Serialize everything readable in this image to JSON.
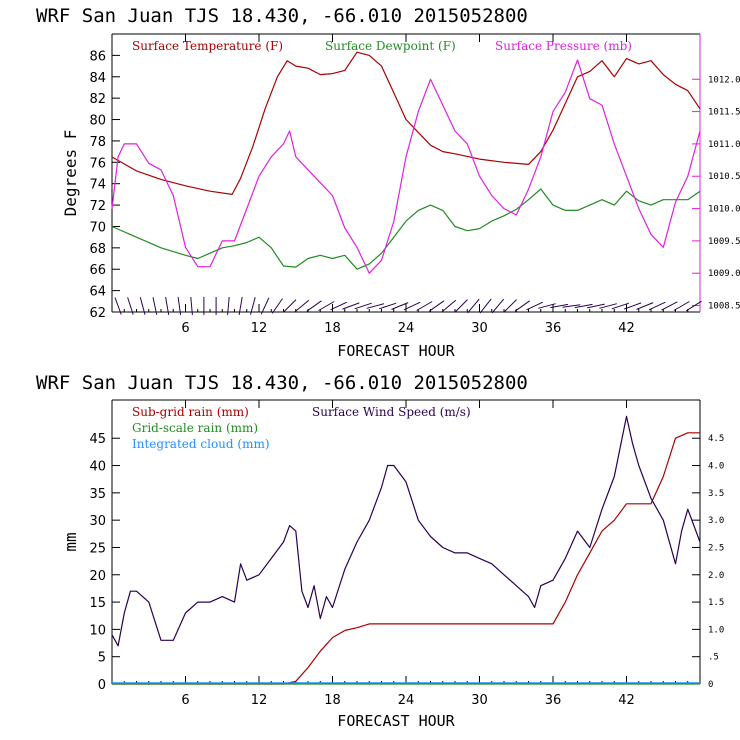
{
  "chart_data": [
    {
      "type": "line",
      "title": "WRF   San Juan TJS  18.430, -66.010  2015052800",
      "xlabel": "FORECAST HOUR",
      "ylabel": "Degrees F",
      "xlim": [
        0,
        48
      ],
      "ylim": [
        62,
        88
      ],
      "y2lim": [
        1008.4,
        1012.7
      ],
      "x_ticks": [
        6,
        12,
        18,
        24,
        30,
        36,
        42
      ],
      "y_ticks": [
        62,
        64,
        66,
        68,
        70,
        72,
        74,
        76,
        78,
        80,
        82,
        84,
        86
      ],
      "y2_ticks": [
        {
          "value": 1008.5,
          "label": "1008.5"
        },
        {
          "value": 1009.0,
          "label": "1009.0"
        },
        {
          "value": 1009.5,
          "label": "1009.5"
        },
        {
          "value": 1010.0,
          "label": "1010.0"
        },
        {
          "value": 1010.5,
          "label": "1010.5"
        },
        {
          "value": 1011.0,
          "label": "1011.0"
        },
        {
          "value": 1011.5,
          "label": "1011.5"
        },
        {
          "value": 1012.0,
          "label": "1012.0"
        }
      ],
      "legend_placement": "top-left",
      "series": [
        {
          "name": "Surface Temperature (F)",
          "color": "#aa0000",
          "axis": "left",
          "x": [
            0,
            2,
            4,
            6,
            8,
            9.8,
            10.5,
            11.5,
            12.5,
            13.5,
            14.3,
            15,
            16,
            17,
            18,
            19,
            20,
            21,
            22,
            23,
            24,
            25,
            26,
            27,
            28,
            30,
            32,
            34,
            35,
            36,
            37,
            38,
            39,
            40,
            41,
            42,
            43,
            44,
            45,
            46,
            47,
            48
          ],
          "y": [
            76.5,
            75.2,
            74.4,
            73.8,
            73.3,
            73.0,
            74.5,
            77.5,
            81.0,
            84.0,
            85.5,
            85.0,
            84.8,
            84.2,
            84.3,
            84.6,
            86.3,
            86.0,
            85.0,
            82.5,
            80.0,
            78.8,
            77.6,
            77.0,
            76.8,
            76.3,
            76.0,
            75.8,
            77.0,
            79.0,
            81.5,
            84.0,
            84.5,
            85.5,
            84.0,
            85.7,
            85.2,
            85.5,
            84.2,
            83.3,
            82.7,
            81.0
          ]
        },
        {
          "name": "Surface Dewpoint (F)",
          "color": "#228b22",
          "axis": "left",
          "x": [
            0,
            2,
            4,
            6,
            7,
            8,
            9,
            10,
            11,
            12,
            13,
            14,
            15,
            16,
            17,
            18,
            19,
            20,
            21,
            22,
            23,
            24,
            25,
            26,
            27,
            28,
            29,
            30,
            31,
            32,
            33,
            34,
            35,
            36,
            37,
            38,
            39,
            40,
            41,
            42,
            43,
            44,
            45,
            46,
            47,
            48
          ],
          "y": [
            70.0,
            69.0,
            68.0,
            67.3,
            67.0,
            67.5,
            68.0,
            68.2,
            68.5,
            69.0,
            68.0,
            66.3,
            66.2,
            67.0,
            67.3,
            67.0,
            67.3,
            66.0,
            66.5,
            67.5,
            69.0,
            70.5,
            71.5,
            72.0,
            71.5,
            70.0,
            69.6,
            69.8,
            70.5,
            71.0,
            71.6,
            72.5,
            73.5,
            72.0,
            71.5,
            71.5,
            72.0,
            72.5,
            72.0,
            73.3,
            72.4,
            72.0,
            72.5,
            72.5,
            72.5,
            73.3
          ]
        },
        {
          "name": "Surface Pressure (mb)",
          "color": "#e020e0",
          "axis": "right",
          "x": [
            0,
            0.5,
            1,
            2,
            3,
            4,
            5,
            6,
            7,
            8,
            9,
            10,
            11,
            12,
            13,
            14,
            14.5,
            15,
            16,
            17,
            18,
            19,
            20,
            21,
            22,
            23,
            24,
            25,
            26,
            27,
            28,
            29,
            30,
            31,
            32,
            33,
            34,
            35,
            36,
            37,
            38,
            39,
            40,
            41,
            42,
            43,
            44,
            45,
            46,
            47,
            48
          ],
          "y": [
            1010.0,
            1010.8,
            1011.0,
            1011.0,
            1010.7,
            1010.6,
            1010.2,
            1009.4,
            1009.1,
            1009.1,
            1009.5,
            1009.5,
            1010.0,
            1010.5,
            1010.8,
            1011.0,
            1011.2,
            1010.8,
            1010.6,
            1010.4,
            1010.2,
            1009.7,
            1009.4,
            1009.0,
            1009.2,
            1009.8,
            1010.8,
            1011.5,
            1012.0,
            1011.6,
            1011.2,
            1011.0,
            1010.5,
            1010.2,
            1010.0,
            1009.9,
            1010.3,
            1010.8,
            1011.5,
            1011.8,
            1012.3,
            1011.7,
            1011.6,
            1011.0,
            1010.5,
            1010.0,
            1009.6,
            1009.4,
            1010.1,
            1010.5,
            1011.2
          ]
        }
      ],
      "wind_barbs": [
        {
          "x": 0.5,
          "dir": 20
        },
        {
          "x": 1.5,
          "dir": 18
        },
        {
          "x": 2.5,
          "dir": 15
        },
        {
          "x": 3.5,
          "dir": 12
        },
        {
          "x": 4.5,
          "dir": 10
        },
        {
          "x": 5.5,
          "dir": 8
        },
        {
          "x": 6.5,
          "dir": 5
        },
        {
          "x": 7.5,
          "dir": 0
        },
        {
          "x": 8.5,
          "dir": 0
        },
        {
          "x": 9.5,
          "dir": -5
        },
        {
          "x": 10.5,
          "dir": -10
        },
        {
          "x": 11.5,
          "dir": -15
        },
        {
          "x": 12.5,
          "dir": -25
        },
        {
          "x": 13.5,
          "dir": -35
        },
        {
          "x": 14.5,
          "dir": -45
        },
        {
          "x": 15.5,
          "dir": -50
        },
        {
          "x": 16.5,
          "dir": -55
        },
        {
          "x": 17.5,
          "dir": -60
        },
        {
          "x": 18.5,
          "dir": -65
        },
        {
          "x": 19.5,
          "dir": -70
        },
        {
          "x": 20.5,
          "dir": -72
        },
        {
          "x": 21.5,
          "dir": -75
        },
        {
          "x": 22.5,
          "dir": -72
        },
        {
          "x": 23.5,
          "dir": -68
        },
        {
          "x": 24.5,
          "dir": -65
        },
        {
          "x": 25.5,
          "dir": -60
        },
        {
          "x": 26.5,
          "dir": -55
        },
        {
          "x": 27.5,
          "dir": -50
        },
        {
          "x": 28.5,
          "dir": -45
        },
        {
          "x": 29.5,
          "dir": -40
        },
        {
          "x": 30.5,
          "dir": -38
        },
        {
          "x": 31.5,
          "dir": -40
        },
        {
          "x": 32.5,
          "dir": -45
        },
        {
          "x": 33.5,
          "dir": -55
        },
        {
          "x": 34.5,
          "dir": -65
        },
        {
          "x": 35.5,
          "dir": -75
        },
        {
          "x": 36.5,
          "dir": -80
        },
        {
          "x": 37.5,
          "dir": -82
        },
        {
          "x": 38.5,
          "dir": -80
        },
        {
          "x": 39.5,
          "dir": -78
        },
        {
          "x": 40.5,
          "dir": -75
        },
        {
          "x": 41.5,
          "dir": -72
        },
        {
          "x": 42.5,
          "dir": -70
        },
        {
          "x": 43.5,
          "dir": -68
        },
        {
          "x": 44.5,
          "dir": -65
        },
        {
          "x": 45.5,
          "dir": -62
        },
        {
          "x": 46.5,
          "dir": -60
        },
        {
          "x": 47.5,
          "dir": -58
        }
      ],
      "wind_barb_color": "#2a0050"
    },
    {
      "type": "line",
      "title": "WRF   San Juan TJS  18.430, -66.010  2015052800",
      "xlabel": "FORECAST HOUR",
      "ylabel": "mm",
      "xlim": [
        0,
        48
      ],
      "ylim": [
        0,
        52
      ],
      "y2lim": [
        0,
        5.2
      ],
      "x_ticks": [
        6,
        12,
        18,
        24,
        30,
        36,
        42
      ],
      "y_ticks": [
        0,
        5,
        10,
        15,
        20,
        25,
        30,
        35,
        40,
        45
      ],
      "y2_ticks": [
        {
          "value": 0,
          "label": "0"
        },
        {
          "value": 0.5,
          "label": ".5"
        },
        {
          "value": 1.0,
          "label": "1.0"
        },
        {
          "value": 1.5,
          "label": "1.5"
        },
        {
          "value": 2.0,
          "label": "2.0"
        },
        {
          "value": 2.5,
          "label": "2.5"
        },
        {
          "value": 3.0,
          "label": "3.0"
        },
        {
          "value": 3.5,
          "label": "3.5"
        },
        {
          "value": 4.0,
          "label": "4.0"
        },
        {
          "value": 4.5,
          "label": "4.5"
        }
      ],
      "legend_placement": "top-left",
      "series": [
        {
          "name": "Sub-grid rain (mm)",
          "color": "#aa0000",
          "axis": "left",
          "x": [
            0,
            14,
            15,
            16,
            17,
            18,
            19,
            20,
            21,
            24,
            30,
            34,
            36,
            37,
            38,
            39,
            40,
            41,
            42,
            43,
            44,
            45,
            46,
            47,
            48
          ],
          "y": [
            0,
            0,
            0.5,
            3,
            6,
            8.5,
            9.8,
            10.3,
            11,
            11,
            11,
            11,
            11,
            15,
            20,
            24,
            28,
            30,
            33,
            33,
            33,
            38,
            45,
            46,
            46
          ]
        },
        {
          "name": "Grid-scale rain (mm)",
          "color": "#228b22",
          "axis": "left",
          "x": [
            0,
            48
          ],
          "y": [
            0,
            0
          ]
        },
        {
          "name": "Integrated cloud (mm)",
          "color": "#1e90ff",
          "axis": "left",
          "x": [
            0,
            48
          ],
          "y": [
            0.2,
            0.2
          ]
        },
        {
          "name": "Surface Wind Speed (m/s)",
          "color": "#2a0050",
          "axis": "right",
          "x": [
            0,
            0.5,
            1,
            1.5,
            2,
            3,
            4,
            5,
            6,
            7,
            8,
            9,
            10,
            10.5,
            11,
            12,
            13,
            14,
            14.5,
            15,
            15.5,
            16,
            16.5,
            17,
            17.5,
            18,
            19,
            20,
            21,
            22,
            22.5,
            23,
            24,
            25,
            26,
            27,
            28,
            29,
            30,
            31,
            32,
            33,
            34,
            34.5,
            35,
            36,
            37,
            38,
            39,
            40,
            41,
            42,
            42.5,
            43,
            44,
            45,
            46,
            46.5,
            47,
            48
          ],
          "y": [
            0.9,
            0.7,
            1.3,
            1.7,
            1.7,
            1.5,
            0.8,
            0.8,
            1.3,
            1.5,
            1.5,
            1.6,
            1.5,
            2.2,
            1.9,
            2.0,
            2.3,
            2.6,
            2.9,
            2.8,
            1.7,
            1.4,
            1.8,
            1.2,
            1.6,
            1.4,
            2.1,
            2.6,
            3.0,
            3.6,
            4.0,
            4.0,
            3.7,
            3.0,
            2.7,
            2.5,
            2.4,
            2.4,
            2.3,
            2.2,
            2.0,
            1.8,
            1.6,
            1.4,
            1.8,
            1.9,
            2.3,
            2.8,
            2.5,
            3.2,
            3.8,
            4.9,
            4.4,
            4.0,
            3.4,
            3.0,
            2.2,
            2.8,
            3.2,
            2.6
          ]
        }
      ]
    }
  ]
}
